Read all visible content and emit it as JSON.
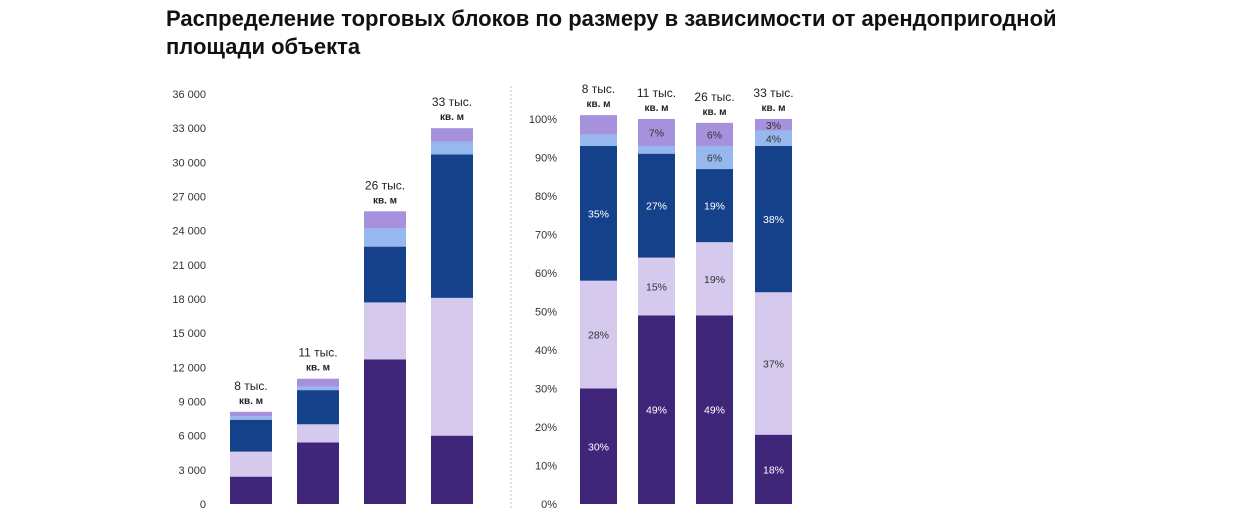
{
  "title": {
    "line1": "Распределение торговых блоков по размеру в зависимости от арендопригодной",
    "line2": "площади объекта"
  },
  "colors": {
    "segments": [
      "#3f2678",
      "#d5c9ee",
      "#14418a",
      "#97b8ee",
      "#a591dc"
    ],
    "pct_text_dark": "#ffffff",
    "pct_text_light": "#333333",
    "divider": "#bfbfbf"
  },
  "chart_data": [
    {
      "type": "bar",
      "stacked": true,
      "categories": [
        "8 тыс. кв. м",
        "11 тыс. кв. м",
        "26 тыс. кв. м",
        "33 тыс. кв. м"
      ],
      "category_labels": [
        [
          "8 тыс.",
          "кв. м"
        ],
        [
          "11 тыс.",
          "кв. м"
        ],
        [
          "26 тыс.",
          "кв. м"
        ],
        [
          "33 тыс.",
          "кв. м"
        ]
      ],
      "series": [
        {
          "values": [
            2400,
            5400,
            12700,
            6000
          ]
        },
        {
          "values": [
            2200,
            1600,
            5000,
            12100
          ]
        },
        {
          "values": [
            2800,
            3000,
            4900,
            12600
          ]
        },
        {
          "values": [
            300,
            300,
            1600,
            1100
          ]
        },
        {
          "values": [
            400,
            700,
            1500,
            1200
          ]
        }
      ],
      "ylim": [
        0,
        36000
      ],
      "y_ticks": [
        0,
        3000,
        6000,
        9000,
        12000,
        15000,
        18000,
        21000,
        24000,
        27000,
        30000,
        33000,
        36000
      ],
      "y_tick_labels": [
        "0",
        "3 000",
        "6 000",
        "9 000",
        "12 000",
        "15 000",
        "18 000",
        "21 000",
        "24 000",
        "27 000",
        "30 000",
        "33 000",
        "36 000"
      ],
      "grid": false
    },
    {
      "type": "bar",
      "stacked": true,
      "percent": true,
      "categories": [
        "8 тыс. кв. м",
        "11 тыс. кв. м",
        "26 тыс. кв. м",
        "33 тыс. кв. м"
      ],
      "category_labels": [
        [
          "8 тыс.",
          "кв. м"
        ],
        [
          "11 тыс.",
          "кв. м"
        ],
        [
          "26 тыс.",
          "кв. м"
        ],
        [
          "33 тыс.",
          "кв. м"
        ]
      ],
      "series": [
        {
          "values": [
            30,
            49,
            49,
            18
          ],
          "labels": [
            "30%",
            "49%",
            "49%",
            "18%"
          ]
        },
        {
          "values": [
            28,
            15,
            19,
            37
          ],
          "labels": [
            "28%",
            "15%",
            "19%",
            "37%"
          ]
        },
        {
          "values": [
            35,
            27,
            19,
            38
          ],
          "labels": [
            "35%",
            "27%",
            "19%",
            "38%"
          ]
        },
        {
          "values": [
            3,
            2,
            6,
            4
          ],
          "labels": [
            "",
            "",
            "6%",
            "4%"
          ]
        },
        {
          "values": [
            5,
            7,
            6,
            3
          ],
          "labels": [
            "",
            "7%",
            "6%",
            "3%"
          ]
        }
      ],
      "ylim": [
        0,
        100
      ],
      "y_ticks": [
        0,
        10,
        20,
        30,
        40,
        50,
        60,
        70,
        80,
        90,
        100
      ],
      "y_tick_labels": [
        "0%",
        "10%",
        "20%",
        "30%",
        "40%",
        "50%",
        "60%",
        "70%",
        "80%",
        "90%",
        "100%"
      ],
      "grid": false
    }
  ]
}
